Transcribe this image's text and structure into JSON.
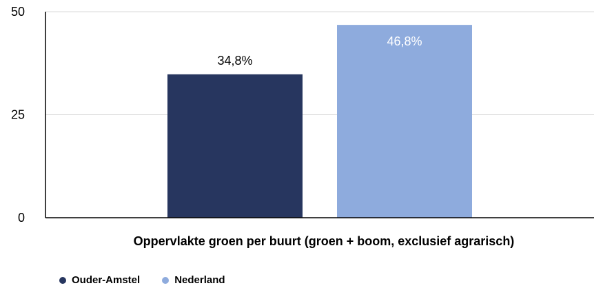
{
  "chart_data": {
    "type": "bar",
    "categories": [
      "Oppervlakte groen per buurt (groen + boom, exclusief agrarisch)"
    ],
    "series": [
      {
        "name": "Ouder-Amstel",
        "values": [
          34.8
        ],
        "label": "34,8%",
        "color": "#27365f",
        "label_color": "#000000"
      },
      {
        "name": "Nederland",
        "values": [
          46.8
        ],
        "label": "46,8%",
        "color": "#8eabdd",
        "label_color": "#ffffff"
      }
    ],
    "xlabel": "Oppervlakte groen per buurt (groen + boom, exclusief agrarisch)",
    "ylabel": "",
    "ylim": [
      0,
      50
    ],
    "yticks": [
      0,
      25,
      50
    ],
    "ytick_labels": [
      "0",
      "25",
      "50"
    ],
    "grid": true,
    "legend_position": "bottom-left"
  }
}
